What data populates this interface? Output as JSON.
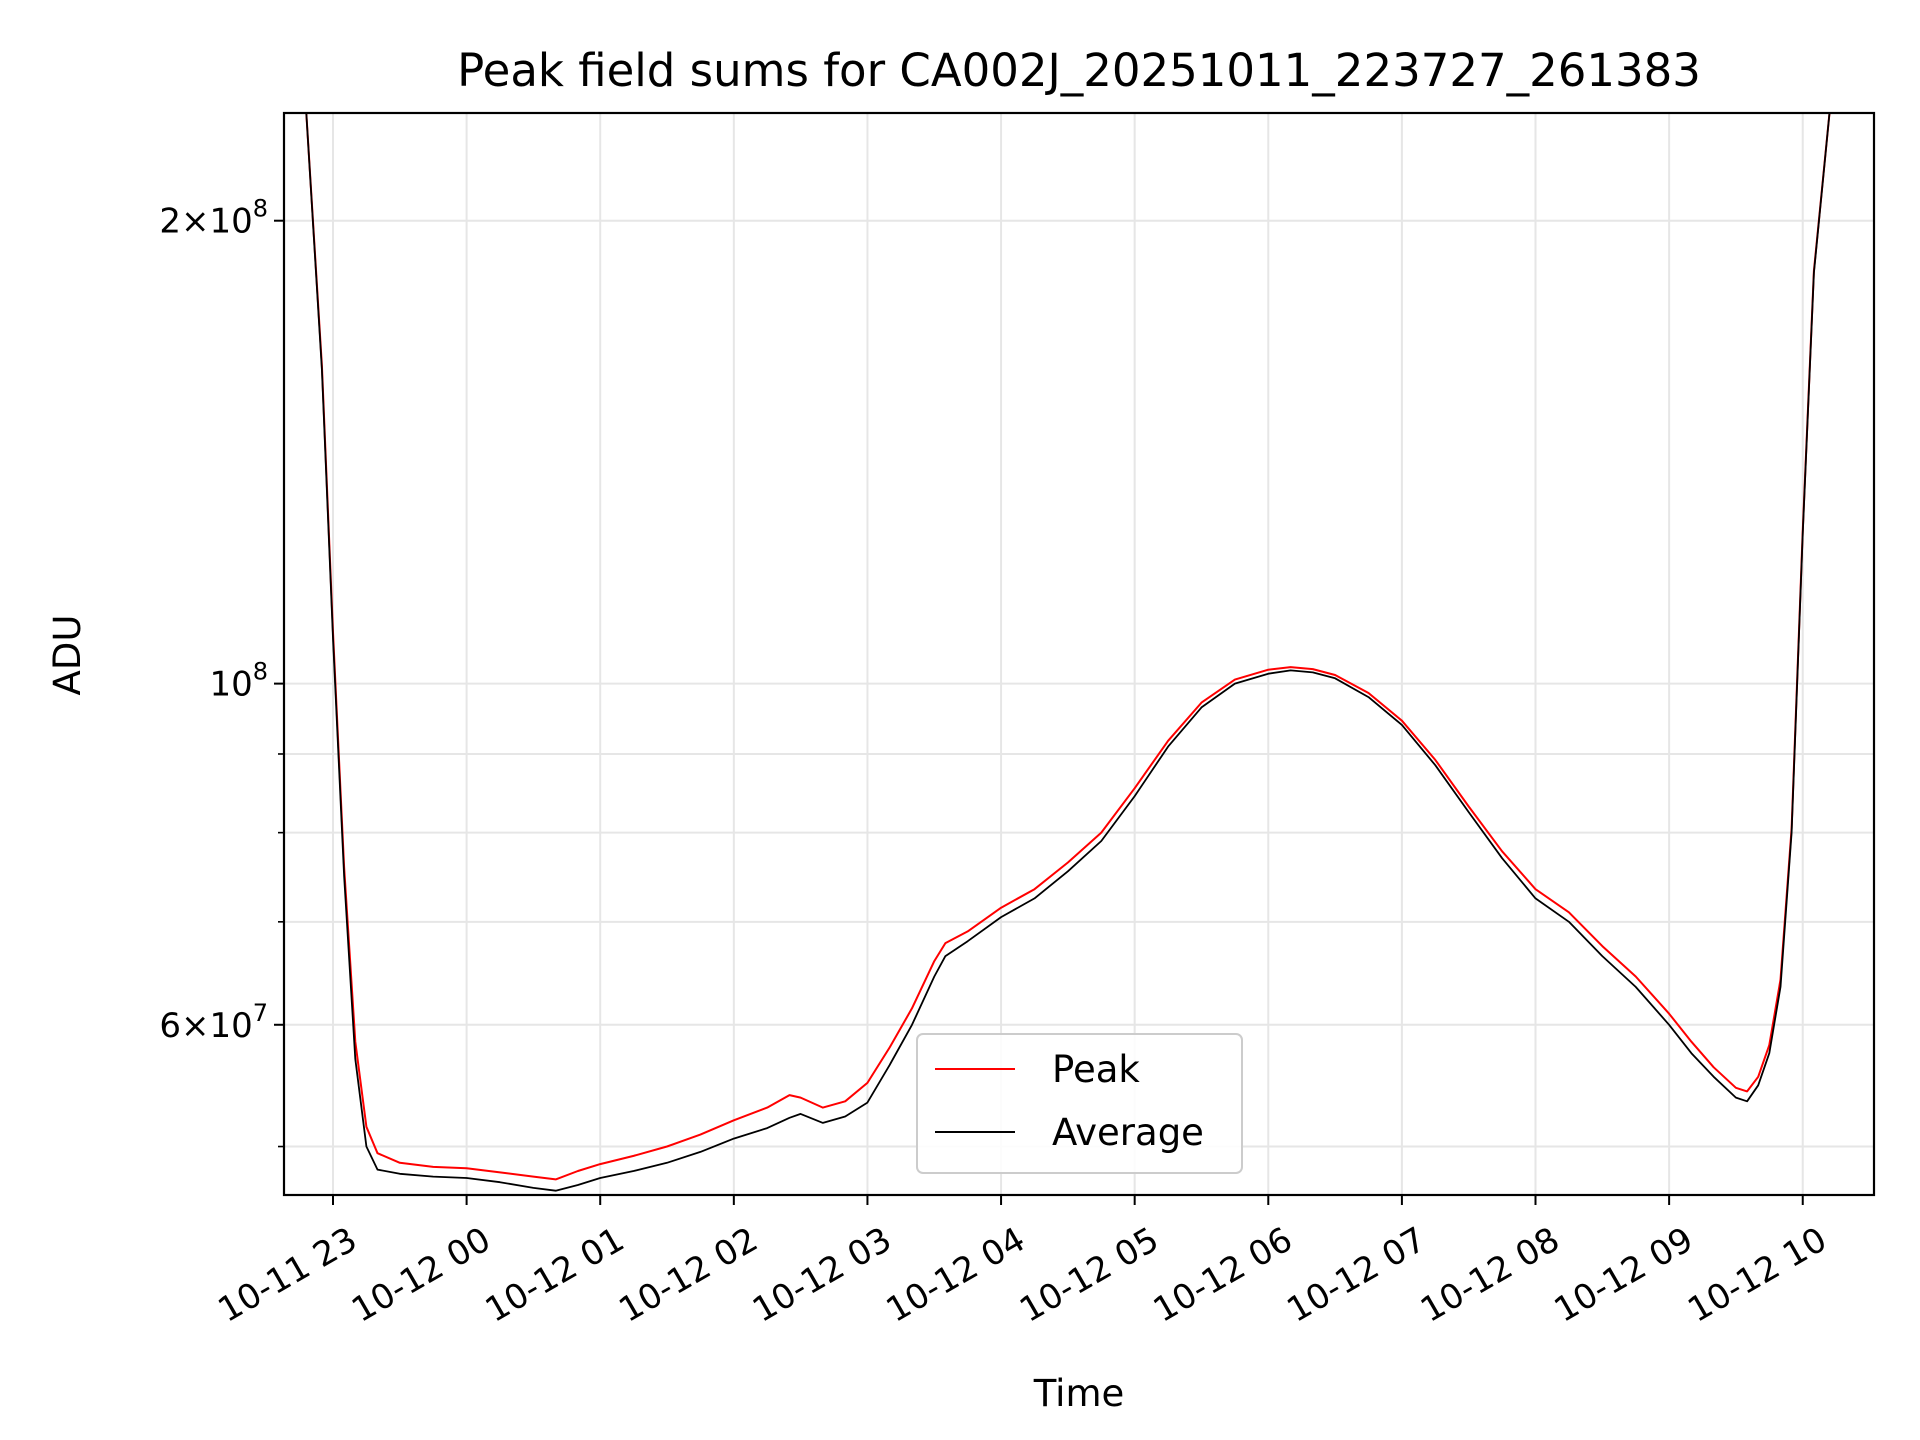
{
  "chart_data": {
    "type": "line",
    "title": "Peak field sums for CA002J_20251011_223727_261383",
    "xlabel": "Time",
    "ylabel": "ADU",
    "y_scale": "log",
    "ylim": [
      46500000,
      235000000
    ],
    "xlim": [
      "2025-10-11 22:38",
      "2025-10-12 10:32"
    ],
    "grid": true,
    "legend_position": "lower-center",
    "x_ticks": [
      "2025-10-11 23:00",
      "2025-10-12 00:00",
      "2025-10-12 01:00",
      "2025-10-12 02:00",
      "2025-10-12 03:00",
      "2025-10-12 04:00",
      "2025-10-12 05:00",
      "2025-10-12 06:00",
      "2025-10-12 07:00",
      "2025-10-12 08:00",
      "2025-10-12 09:00",
      "2025-10-12 10:00"
    ],
    "x_tick_labels": [
      "10-11 23",
      "10-12 00",
      "10-12 01",
      "10-12 02",
      "10-12 03",
      "10-12 04",
      "10-12 05",
      "10-12 06",
      "10-12 07",
      "10-12 08",
      "10-12 09",
      "10-12 10"
    ],
    "y_major_ticks": [
      {
        "value": 60000000,
        "mantissa": "6",
        "exponent": "7"
      },
      {
        "value": 100000000,
        "mantissa": "",
        "exponent": "8"
      },
      {
        "value": 200000000,
        "mantissa": "2",
        "exponent": "8"
      }
    ],
    "y_minor_ticks": [
      50000000,
      70000000,
      80000000,
      90000000
    ],
    "series": [
      {
        "name": "Average",
        "color": "#000000",
        "x": [
          "2025-10-11 22:38",
          "2025-10-11 22:48",
          "2025-10-11 22:55",
          "2025-10-11 23:00",
          "2025-10-11 23:05",
          "2025-10-11 23:10",
          "2025-10-11 23:15",
          "2025-10-11 23:20",
          "2025-10-11 23:30",
          "2025-10-11 23:45",
          "2025-10-12 00:00",
          "2025-10-12 00:15",
          "2025-10-12 00:30",
          "2025-10-12 00:40",
          "2025-10-12 00:50",
          "2025-10-12 01:00",
          "2025-10-12 01:15",
          "2025-10-12 01:30",
          "2025-10-12 01:45",
          "2025-10-12 02:00",
          "2025-10-12 02:15",
          "2025-10-12 02:25",
          "2025-10-12 02:30",
          "2025-10-12 02:40",
          "2025-10-12 02:50",
          "2025-10-12 03:00",
          "2025-10-12 03:10",
          "2025-10-12 03:20",
          "2025-10-12 03:30",
          "2025-10-12 03:35",
          "2025-10-12 03:45",
          "2025-10-12 04:00",
          "2025-10-12 04:15",
          "2025-10-12 04:30",
          "2025-10-12 04:45",
          "2025-10-12 05:00",
          "2025-10-12 05:15",
          "2025-10-12 05:30",
          "2025-10-12 05:45",
          "2025-10-12 06:00",
          "2025-10-12 06:10",
          "2025-10-12 06:20",
          "2025-10-12 06:30",
          "2025-10-12 06:45",
          "2025-10-12 07:00",
          "2025-10-12 07:15",
          "2025-10-12 07:30",
          "2025-10-12 07:45",
          "2025-10-12 08:00",
          "2025-10-12 08:15",
          "2025-10-12 08:30",
          "2025-10-12 08:45",
          "2025-10-12 09:00",
          "2025-10-12 09:10",
          "2025-10-12 09:20",
          "2025-10-12 09:30",
          "2025-10-12 09:35",
          "2025-10-12 09:40",
          "2025-10-12 09:45",
          "2025-10-12 09:50",
          "2025-10-12 09:55",
          "2025-10-12 10:00",
          "2025-10-12 10:05",
          "2025-10-12 10:12"
        ],
        "y": [
          235000000,
          235000000,
          160000000,
          107000000,
          75000000,
          57000000,
          50000000,
          48300000,
          48000000,
          47800000,
          47700000,
          47400000,
          47000000,
          46800000,
          47200000,
          47700000,
          48200000,
          48800000,
          49600000,
          50600000,
          51400000,
          52200000,
          52500000,
          51800000,
          52300000,
          53400000,
          56500000,
          60000000,
          64500000,
          66500000,
          68000000,
          70500000,
          72500000,
          75500000,
          79000000,
          84500000,
          91000000,
          96500000,
          100000000,
          101500000,
          102000000,
          101700000,
          100800000,
          98000000,
          94000000,
          88500000,
          82500000,
          77000000,
          72500000,
          70000000,
          66500000,
          63500000,
          60000000,
          57500000,
          55500000,
          53800000,
          53500000,
          54800000,
          57500000,
          63500000,
          80000000,
          125000000,
          185000000,
          235000000
        ]
      },
      {
        "name": "Peak",
        "color": "#ff0000",
        "x": [
          "2025-10-11 22:38",
          "2025-10-11 22:48",
          "2025-10-11 22:55",
          "2025-10-11 23:00",
          "2025-10-11 23:05",
          "2025-10-11 23:10",
          "2025-10-11 23:15",
          "2025-10-11 23:20",
          "2025-10-11 23:30",
          "2025-10-11 23:45",
          "2025-10-12 00:00",
          "2025-10-12 00:15",
          "2025-10-12 00:30",
          "2025-10-12 00:40",
          "2025-10-12 00:50",
          "2025-10-12 01:00",
          "2025-10-12 01:15",
          "2025-10-12 01:30",
          "2025-10-12 01:45",
          "2025-10-12 02:00",
          "2025-10-12 02:15",
          "2025-10-12 02:25",
          "2025-10-12 02:30",
          "2025-10-12 02:40",
          "2025-10-12 02:50",
          "2025-10-12 03:00",
          "2025-10-12 03:10",
          "2025-10-12 03:20",
          "2025-10-12 03:30",
          "2025-10-12 03:35",
          "2025-10-12 03:45",
          "2025-10-12 04:00",
          "2025-10-12 04:15",
          "2025-10-12 04:30",
          "2025-10-12 04:45",
          "2025-10-12 05:00",
          "2025-10-12 05:15",
          "2025-10-12 05:30",
          "2025-10-12 05:45",
          "2025-10-12 06:00",
          "2025-10-12 06:10",
          "2025-10-12 06:20",
          "2025-10-12 06:30",
          "2025-10-12 06:45",
          "2025-10-12 07:00",
          "2025-10-12 07:15",
          "2025-10-12 07:30",
          "2025-10-12 07:45",
          "2025-10-12 08:00",
          "2025-10-12 08:15",
          "2025-10-12 08:30",
          "2025-10-12 08:45",
          "2025-10-12 09:00",
          "2025-10-12 09:10",
          "2025-10-12 09:20",
          "2025-10-12 09:30",
          "2025-10-12 09:35",
          "2025-10-12 09:40",
          "2025-10-12 09:45",
          "2025-10-12 09:50",
          "2025-10-12 09:55",
          "2025-10-12 10:00",
          "2025-10-12 10:05",
          "2025-10-12 10:12"
        ],
        "y": [
          235000000,
          235000000,
          161000000,
          108000000,
          76000000,
          58500000,
          51500000,
          49500000,
          48800000,
          48500000,
          48400000,
          48100000,
          47800000,
          47600000,
          48200000,
          48700000,
          49300000,
          50000000,
          50900000,
          52000000,
          53000000,
          54000000,
          53800000,
          53000000,
          53500000,
          55000000,
          58000000,
          61500000,
          66000000,
          67800000,
          69000000,
          71500000,
          73500000,
          76500000,
          80000000,
          85500000,
          91800000,
          97200000,
          100600000,
          102100000,
          102500000,
          102200000,
          101300000,
          98600000,
          94600000,
          89200000,
          83200000,
          77800000,
          73500000,
          71000000,
          67500000,
          64500000,
          61000000,
          58500000,
          56300000,
          54600000,
          54300000,
          55500000,
          58200000,
          64200000,
          80500000,
          125500000,
          185500000,
          235000000
        ]
      }
    ]
  }
}
